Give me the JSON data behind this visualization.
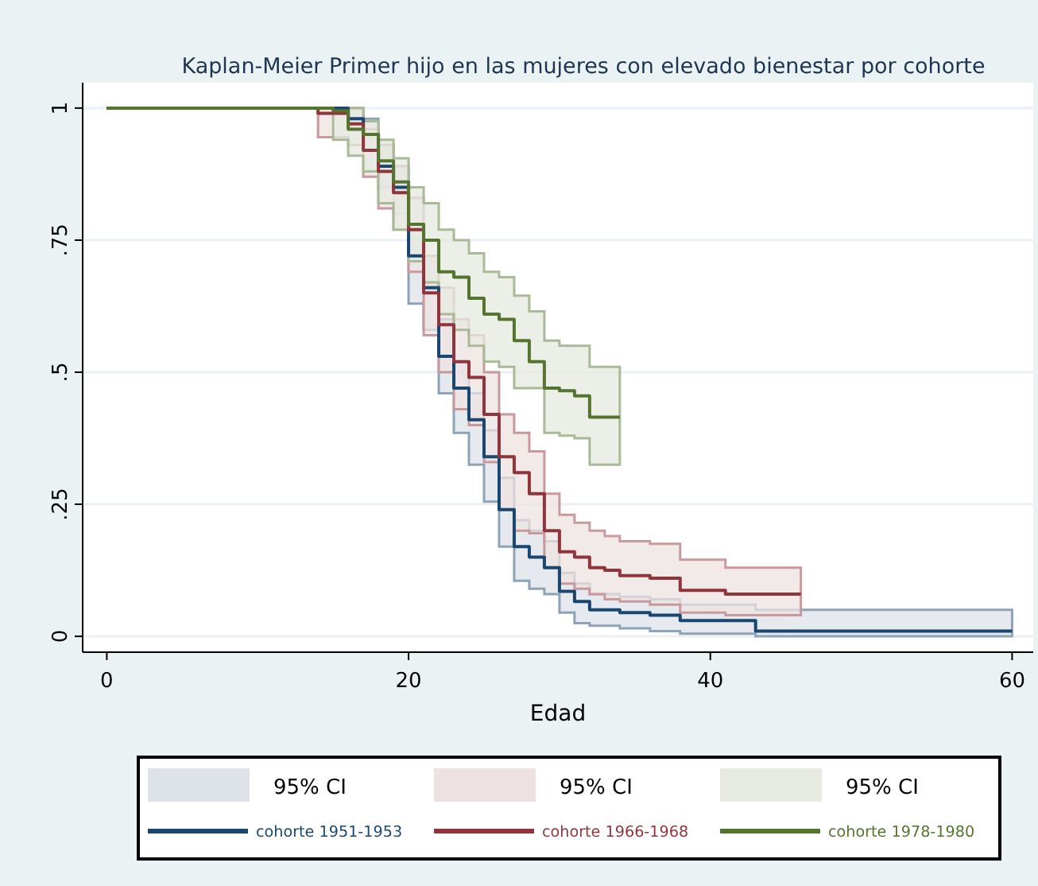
{
  "chart_data": {
    "type": "step",
    "title": "Kaplan-Meier Primer hijo en las mujeres con elevado  bienestar por cohorte",
    "xlabel": "Edad",
    "xlim": [
      -1.6,
      61.4
    ],
    "xticks": [
      0,
      20,
      40,
      60
    ],
    "ylim": [
      -0.03,
      1.048
    ],
    "yticks": [
      {
        "value": 0,
        "label": "0"
      },
      {
        "value": 0.25,
        "label": ".25"
      },
      {
        "value": 0.5,
        "label": ".5"
      },
      {
        "value": 0.75,
        "label": ".75"
      },
      {
        "value": 1,
        "label": "1"
      }
    ],
    "grid": "y",
    "legend": "bottom",
    "annotations": [
      "95% CI",
      "95% CI",
      "95% CI"
    ],
    "series": [
      {
        "name": "cohorte 1951-1953",
        "color": "#1a476f",
        "x": [
          0,
          16,
          17,
          18,
          19,
          20,
          21,
          22,
          23,
          24,
          25,
          26,
          27,
          28,
          29,
          30,
          31,
          32,
          34,
          36,
          38,
          43,
          60
        ],
        "values": [
          1,
          0.98,
          0.95,
          0.89,
          0.85,
          0.72,
          0.66,
          0.53,
          0.47,
          0.41,
          0.34,
          0.24,
          0.17,
          0.15,
          0.13,
          0.085,
          0.066,
          0.05,
          0.045,
          0.04,
          0.03,
          0.01,
          0.01
        ],
        "lower": [
          1,
          0.96,
          0.92,
          0.85,
          0.8,
          0.63,
          0.58,
          0.46,
          0.385,
          0.325,
          0.255,
          0.17,
          0.105,
          0.09,
          0.08,
          0.045,
          0.025,
          0.02,
          0.015,
          0.01,
          0.005,
          0,
          0
        ],
        "upper": [
          1,
          1,
          0.98,
          0.93,
          0.89,
          0.78,
          0.72,
          0.6,
          0.52,
          0.46,
          0.39,
          0.3,
          0.22,
          0.2,
          0.18,
          0.12,
          0.1,
          0.08,
          0.075,
          0.07,
          0.06,
          0.05,
          0.05
        ]
      },
      {
        "name": "cohorte 1966-1968",
        "color": "#90353b",
        "x": [
          0,
          14,
          16,
          17,
          18,
          19,
          20,
          21,
          22,
          23,
          24,
          25,
          26,
          27,
          28,
          29,
          30,
          31,
          32,
          33,
          34,
          36,
          38,
          41,
          46
        ],
        "values": [
          1,
          0.99,
          0.97,
          0.92,
          0.88,
          0.84,
          0.77,
          0.65,
          0.59,
          0.52,
          0.49,
          0.42,
          0.34,
          0.31,
          0.27,
          0.2,
          0.16,
          0.15,
          0.13,
          0.125,
          0.115,
          0.11,
          0.087,
          0.08,
          0.08
        ],
        "lower": [
          1,
          0.945,
          0.93,
          0.87,
          0.81,
          0.77,
          0.69,
          0.57,
          0.5,
          0.43,
          0.4,
          0.33,
          0.24,
          0.2,
          0.195,
          0.13,
          0.1,
          0.09,
          0.08,
          0.07,
          0.066,
          0.06,
          0.045,
          0.04,
          0.04
        ],
        "upper": [
          1,
          1,
          1,
          0.96,
          0.93,
          0.89,
          0.83,
          0.72,
          0.66,
          0.6,
          0.57,
          0.5,
          0.42,
          0.385,
          0.35,
          0.27,
          0.23,
          0.215,
          0.2,
          0.19,
          0.18,
          0.175,
          0.145,
          0.13,
          0.13
        ]
      },
      {
        "name": "cohorte 1978-1980",
        "color": "#55752f",
        "x": [
          0,
          15,
          16,
          17,
          18,
          19,
          20,
          21,
          22,
          23,
          24,
          25,
          26,
          27,
          28,
          29,
          30,
          31,
          32,
          34
        ],
        "values": [
          1,
          0.995,
          0.96,
          0.95,
          0.9,
          0.86,
          0.78,
          0.75,
          0.69,
          0.68,
          0.64,
          0.61,
          0.6,
          0.56,
          0.52,
          0.47,
          0.465,
          0.455,
          0.415,
          0.415
        ],
        "lower": [
          1,
          0.94,
          0.91,
          0.88,
          0.82,
          0.77,
          0.71,
          0.67,
          0.61,
          0.58,
          0.55,
          0.52,
          0.51,
          0.47,
          0.47,
          0.385,
          0.38,
          0.375,
          0.325,
          0.325
        ],
        "upper": [
          1,
          1,
          1,
          0.975,
          0.94,
          0.905,
          0.85,
          0.82,
          0.77,
          0.75,
          0.725,
          0.69,
          0.68,
          0.645,
          0.615,
          0.56,
          0.55,
          0.55,
          0.51,
          0.51
        ]
      }
    ]
  }
}
